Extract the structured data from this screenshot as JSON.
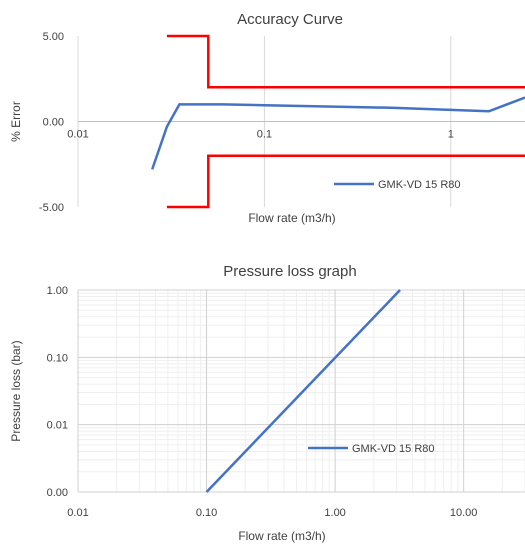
{
  "chart_data": [
    {
      "type": "line",
      "title": "Accuracy Curve",
      "xlabel": "Flow rate (m3/h)",
      "ylabel": "% Error",
      "x_scale": "log",
      "xlim": [
        0.01,
        2.5
      ],
      "ylim": [
        -5,
        5
      ],
      "x_ticks": [
        0.01,
        0.1,
        1
      ],
      "x_tick_labels": [
        "0.01",
        "0.1",
        "1"
      ],
      "y_ticks": [
        5,
        0,
        -5
      ],
      "y_tick_labels": [
        "5.00",
        "0.00",
        "-5.00"
      ],
      "grid": "vertical",
      "legend": "bottom-right",
      "series": [
        {
          "name": "GMK-VD 15 R80",
          "color": "#4472c4",
          "x": [
            0.025,
            0.03,
            0.035,
            0.06,
            0.1,
            0.5,
            1.6,
            2.5
          ],
          "y": [
            -2.8,
            -0.3,
            1.0,
            1.0,
            0.95,
            0.8,
            0.6,
            1.4
          ]
        }
      ],
      "limit_lines": [
        {
          "color": "#ff0000",
          "x": [
            0.03,
            0.05,
            0.05,
            2.5
          ],
          "y": [
            5,
            5,
            2,
            2
          ]
        },
        {
          "color": "#ff0000",
          "x": [
            0.03,
            0.05,
            0.05,
            2.5
          ],
          "y": [
            -5,
            -5,
            -2,
            -2
          ]
        }
      ]
    },
    {
      "type": "line",
      "title": "Pressure loss graph",
      "xlabel": "Flow rate (m3/h)",
      "ylabel": "Pressure loss (bar)",
      "x_scale": "log",
      "y_scale": "log",
      "xlim": [
        0.01,
        30
      ],
      "ylim": [
        0.001,
        1
      ],
      "x_ticks": [
        0.01,
        0.1,
        1,
        10
      ],
      "x_tick_labels": [
        "0.01",
        "0.10",
        "1.00",
        "10.00"
      ],
      "y_ticks": [
        1,
        0.1,
        0.01,
        0.001
      ],
      "y_tick_labels": [
        "1.00",
        "0.10",
        "0.01",
        "0.00"
      ],
      "grid": "both",
      "legend": "center-right",
      "series": [
        {
          "name": "GMK-VD 15 R80",
          "color": "#4472c4",
          "x": [
            0.1,
            3.2
          ],
          "y": [
            0.001,
            1
          ]
        }
      ]
    }
  ]
}
